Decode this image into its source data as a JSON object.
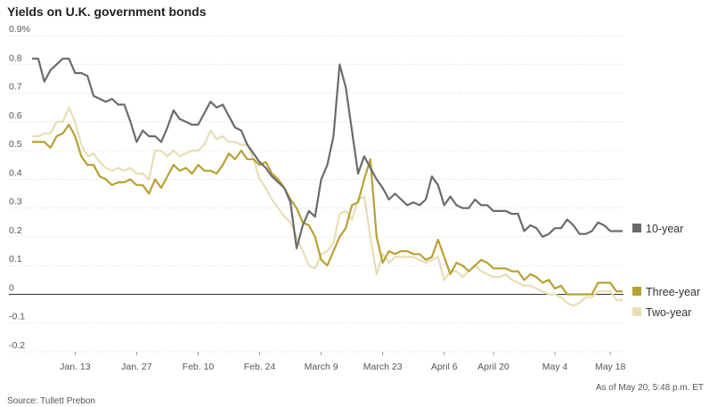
{
  "chart_data": {
    "type": "line",
    "title": "Yields on U.K. government bonds",
    "xlabel": "",
    "ylabel": "",
    "y_ticks": [
      "0.9%",
      "0.8",
      "0.7",
      "0.6",
      "0.5",
      "0.4",
      "0.3",
      "0.2",
      "0.1",
      "0",
      "-0.1",
      "-0.2"
    ],
    "ylim": [
      -0.2,
      0.9
    ],
    "x_ticks": [
      "Jan. 13",
      "Jan. 27",
      "Feb. 10",
      "Feb. 24",
      "March 9",
      "March 23",
      "April 6",
      "April 20",
      "May 4",
      "May 18"
    ],
    "x": [
      "Jan. 2",
      "Jan. 3",
      "Jan. 6",
      "Jan. 7",
      "Jan. 8",
      "Jan. 9",
      "Jan. 10",
      "Jan. 13",
      "Jan. 14",
      "Jan. 15",
      "Jan. 16",
      "Jan. 17",
      "Jan. 20",
      "Jan. 21",
      "Jan. 22",
      "Jan. 23",
      "Jan. 24",
      "Jan. 27",
      "Jan. 28",
      "Jan. 29",
      "Jan. 30",
      "Jan. 31",
      "Feb. 3",
      "Feb. 4",
      "Feb. 5",
      "Feb. 6",
      "Feb. 7",
      "Feb. 10",
      "Feb. 11",
      "Feb. 12",
      "Feb. 13",
      "Feb. 14",
      "Feb. 17",
      "Feb. 18",
      "Feb. 19",
      "Feb. 20",
      "Feb. 21",
      "Feb. 24",
      "Feb. 25",
      "Feb. 26",
      "Feb. 27",
      "Feb. 28",
      "March 2",
      "March 3",
      "March 4",
      "March 5",
      "March 6",
      "March 9",
      "March 10",
      "March 11",
      "March 12",
      "March 13",
      "March 16",
      "March 17",
      "March 18",
      "March 19",
      "March 20",
      "March 23",
      "March 24",
      "March 25",
      "March 26",
      "March 27",
      "March 30",
      "March 31",
      "April 1",
      "April 2",
      "April 3",
      "April 6",
      "April 7",
      "April 8",
      "April 9",
      "April 14",
      "April 15",
      "April 16",
      "April 17",
      "April 20",
      "April 21",
      "April 22",
      "April 23",
      "April 24",
      "April 27",
      "April 28",
      "April 29",
      "April 30",
      "May 1",
      "May 4",
      "May 5",
      "May 6",
      "May 7",
      "May 11",
      "May 12",
      "May 13",
      "May 14",
      "May 15",
      "May 18",
      "May 19",
      "May 20"
    ],
    "series": [
      {
        "name": "10-year",
        "color": "#6b6b6b",
        "values": [
          0.82,
          0.82,
          0.74,
          0.78,
          0.8,
          0.82,
          0.82,
          0.77,
          0.77,
          0.76,
          0.69,
          0.68,
          0.67,
          0.68,
          0.66,
          0.66,
          0.6,
          0.53,
          0.57,
          0.55,
          0.55,
          0.53,
          0.58,
          0.64,
          0.61,
          0.6,
          0.59,
          0.59,
          0.63,
          0.67,
          0.65,
          0.66,
          0.62,
          0.58,
          0.57,
          0.52,
          0.49,
          0.46,
          0.44,
          0.41,
          0.39,
          0.37,
          0.32,
          0.16,
          0.24,
          0.29,
          0.27,
          0.4,
          0.45,
          0.55,
          0.8,
          0.72,
          0.57,
          0.42,
          0.48,
          0.44,
          0.4,
          0.37,
          0.33,
          0.35,
          0.33,
          0.31,
          0.32,
          0.31,
          0.33,
          0.41,
          0.38,
          0.31,
          0.34,
          0.31,
          0.3,
          0.3,
          0.33,
          0.31,
          0.31,
          0.29,
          0.29,
          0.29,
          0.28,
          0.28,
          0.22,
          0.24,
          0.23,
          0.2,
          0.21,
          0.23,
          0.23,
          0.26,
          0.24,
          0.21,
          0.21,
          0.22,
          0.25,
          0.24,
          0.22,
          0.22,
          0.22
        ]
      },
      {
        "name": "Three-year",
        "color": "#b9a032",
        "values": [
          0.53,
          0.53,
          0.53,
          0.51,
          0.55,
          0.56,
          0.59,
          0.55,
          0.48,
          0.45,
          0.45,
          0.41,
          0.4,
          0.38,
          0.39,
          0.39,
          0.4,
          0.38,
          0.38,
          0.35,
          0.4,
          0.37,
          0.41,
          0.45,
          0.43,
          0.44,
          0.42,
          0.45,
          0.43,
          0.43,
          0.42,
          0.45,
          0.49,
          0.47,
          0.5,
          0.47,
          0.47,
          0.45,
          0.46,
          0.42,
          0.4,
          0.37,
          0.33,
          0.3,
          0.25,
          0.24,
          0.2,
          0.12,
          0.1,
          0.15,
          0.2,
          0.23,
          0.31,
          0.32,
          0.4,
          0.47,
          0.2,
          0.11,
          0.15,
          0.14,
          0.15,
          0.15,
          0.14,
          0.14,
          0.12,
          0.13,
          0.19,
          0.13,
          0.07,
          0.11,
          0.1,
          0.08,
          0.1,
          0.12,
          0.11,
          0.09,
          0.09,
          0.09,
          0.08,
          0.08,
          0.05,
          0.07,
          0.06,
          0.04,
          0.05,
          0.02,
          0.03,
          0.0,
          0.0,
          0.0,
          0.0,
          0.0,
          0.04,
          0.04,
          0.04,
          0.01,
          0.01
        ]
      },
      {
        "name": "Two-year",
        "color": "#e8ddb5",
        "values": [
          0.55,
          0.55,
          0.56,
          0.56,
          0.6,
          0.6,
          0.65,
          0.6,
          0.52,
          0.48,
          0.49,
          0.46,
          0.44,
          0.43,
          0.44,
          0.43,
          0.44,
          0.42,
          0.42,
          0.4,
          0.5,
          0.5,
          0.48,
          0.5,
          0.48,
          0.49,
          0.5,
          0.5,
          0.52,
          0.57,
          0.54,
          0.55,
          0.53,
          0.53,
          0.52,
          0.52,
          0.47,
          0.4,
          0.37,
          0.33,
          0.3,
          0.27,
          0.25,
          0.2,
          0.15,
          0.1,
          0.09,
          0.14,
          0.15,
          0.18,
          0.28,
          0.29,
          0.26,
          0.33,
          0.34,
          0.2,
          0.07,
          0.14,
          0.11,
          0.13,
          0.13,
          0.13,
          0.13,
          0.12,
          0.11,
          0.12,
          0.13,
          0.05,
          0.08,
          0.08,
          0.06,
          0.08,
          0.1,
          0.08,
          0.07,
          0.06,
          0.06,
          0.07,
          0.05,
          0.04,
          0.03,
          0.03,
          0.02,
          0.01,
          0.0,
          0.0,
          -0.01,
          -0.03,
          -0.04,
          -0.03,
          -0.01,
          -0.01,
          0.01,
          0.01,
          0.01,
          -0.02,
          -0.02
        ]
      }
    ],
    "legend": [
      "10-year",
      "Three-year",
      "Two-year"
    ],
    "legend_placement": "right",
    "source": "Source: Tullett Prebon",
    "as_of": "As of May 20, 5:48 p.m. ET",
    "grid": true
  }
}
